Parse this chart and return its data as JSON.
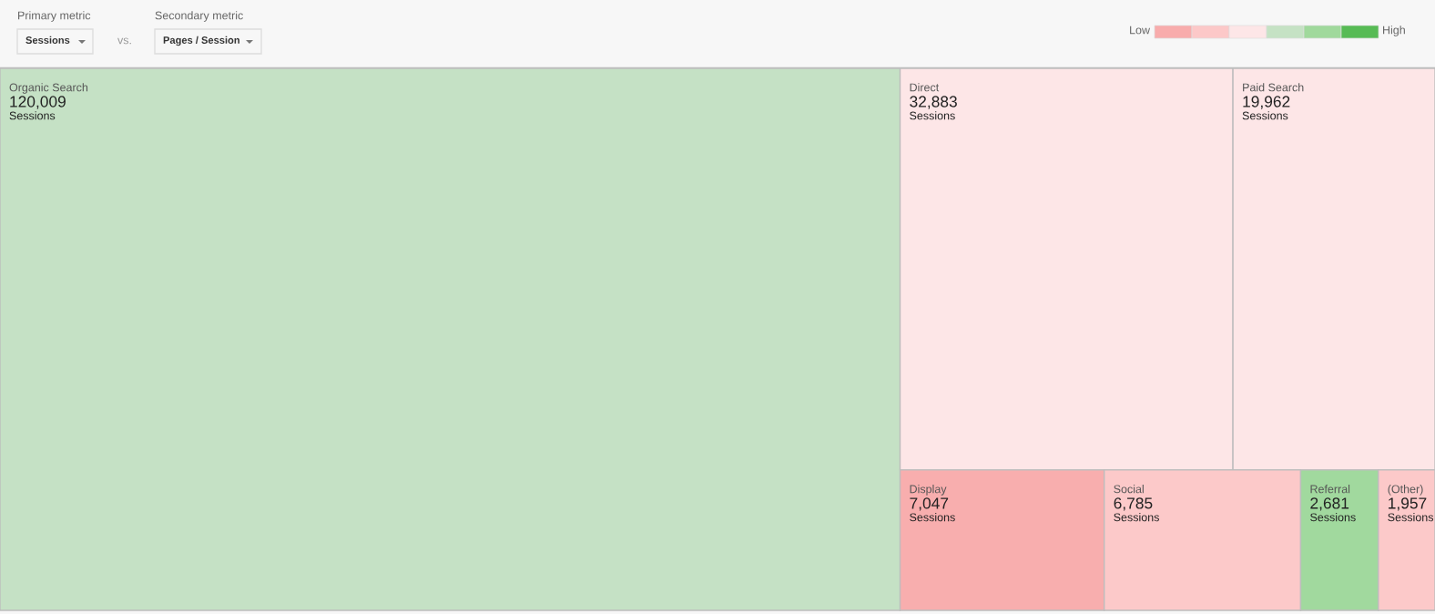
{
  "chart_data": {
    "type": "other",
    "categories": [
      "Organic Search",
      "Direct",
      "Paid Search",
      "Display",
      "Social",
      "Referral",
      "(Other)"
    ],
    "values": [
      120009,
      32883,
      19962,
      7047,
      6785,
      2681,
      1957
    ],
    "value_labels": [
      "120,009",
      "32,883",
      "19,962",
      "7,047",
      "6,785",
      "2,681",
      "1,957"
    ],
    "colors": [
      "#c5e1c5",
      "#fde6e7",
      "#fde6e7",
      "#f8aeae",
      "#fcc9c9",
      "#a1d99e",
      "#fcc9c9"
    ],
    "annotations": [
      "Primary metric",
      "Sessions",
      "vs.",
      "Secondary metric",
      "Pages / Session",
      "Low",
      "High"
    ]
  }
}
